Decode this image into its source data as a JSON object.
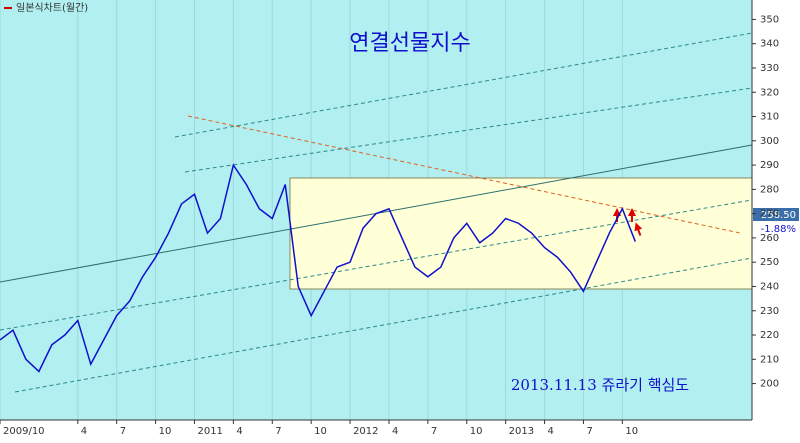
{
  "chart_data": {
    "type": "line",
    "title": "연결선물지수",
    "chart_kind_label": "일본식차트(월간)",
    "annotation": "2013.11.13 쥬라기 핵심도",
    "last_value_label": "258.50",
    "change_label": "-1.88%",
    "x": [
      0,
      1,
      2,
      3,
      4,
      5,
      6,
      7,
      8,
      9,
      10,
      11,
      12,
      13,
      14,
      15,
      16,
      17,
      18,
      19,
      20,
      21,
      22,
      23,
      24,
      25,
      26,
      27,
      28,
      29,
      30,
      31,
      32,
      33,
      34,
      35,
      36,
      37,
      38,
      39,
      40,
      41,
      42,
      43,
      44,
      45,
      46,
      47,
      48,
      49
    ],
    "series": [
      {
        "color": "#1010cc",
        "values": [
          218,
          222,
          210,
          205,
          216,
          220,
          226,
          208,
          218,
          228,
          234,
          244,
          252,
          262,
          274,
          278,
          262,
          268,
          290,
          282,
          272,
          268,
          282,
          240,
          228,
          238,
          248,
          250,
          264,
          270,
          272,
          260,
          248,
          244,
          248,
          260,
          266,
          258,
          262,
          268,
          266,
          262,
          256,
          252,
          246,
          238,
          250,
          262,
          272,
          258.5
        ]
      }
    ],
    "xlim": [
      0,
      58
    ],
    "xticks": [
      {
        "value": 0,
        "label": "2009/10"
      },
      {
        "value": 6,
        "label": "4"
      },
      {
        "value": 9,
        "label": "7"
      },
      {
        "value": 12,
        "label": "10"
      },
      {
        "value": 15,
        "label": "2011"
      },
      {
        "value": 18,
        "label": "4"
      },
      {
        "value": 21,
        "label": "7"
      },
      {
        "value": 24,
        "label": "10"
      },
      {
        "value": 27,
        "label": "2012"
      },
      {
        "value": 30,
        "label": "4"
      },
      {
        "value": 33,
        "label": "7"
      },
      {
        "value": 36,
        "label": "10"
      },
      {
        "value": 39,
        "label": "2013"
      },
      {
        "value": 42,
        "label": "4"
      },
      {
        "value": 45,
        "label": "7"
      },
      {
        "value": 48,
        "label": "10"
      }
    ],
    "ylim": [
      185,
      358
    ],
    "yticks": [
      200,
      210,
      220,
      230,
      240,
      250,
      260,
      270,
      280,
      290,
      300,
      310,
      320,
      330,
      340,
      350
    ]
  }
}
